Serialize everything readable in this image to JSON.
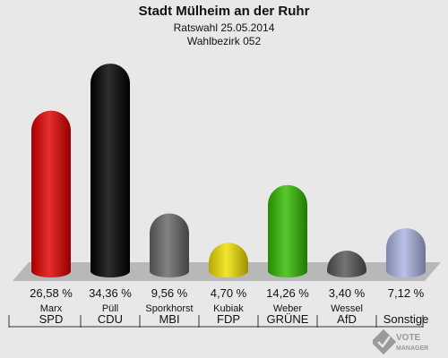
{
  "header": {
    "title": "Stadt Mülheim an der Ruhr",
    "subtitle": "Ratswahl 25.05.2014",
    "district": "Wahlbezirk 052"
  },
  "chart_data": {
    "type": "bar",
    "categories": [
      "SPD",
      "CDU",
      "MBI",
      "FDP",
      "GRÜNE",
      "AfD",
      "Sonstige"
    ],
    "candidates": [
      "Marx",
      "Püll",
      "Sporkhorst",
      "Kubiak",
      "Weber",
      "Wessel",
      ""
    ],
    "values": [
      26.58,
      34.36,
      9.56,
      4.7,
      14.26,
      3.4,
      7.12
    ],
    "value_labels": [
      "26,58 %",
      "34,36 %",
      "9,56 %",
      "4,70 %",
      "14,26 %",
      "3,40 %",
      "7,12 %"
    ],
    "colors": [
      "#e00000",
      "#000000",
      "#666666",
      "#f0e000",
      "#33bb00",
      "#555555",
      "#aab4e0"
    ],
    "title": "Stadt Mülheim an der Ruhr",
    "xlabel": "",
    "ylabel": "",
    "ylim": [
      0,
      36
    ]
  },
  "watermark": {
    "line1": "VOTE",
    "line2": "MANAGER"
  }
}
